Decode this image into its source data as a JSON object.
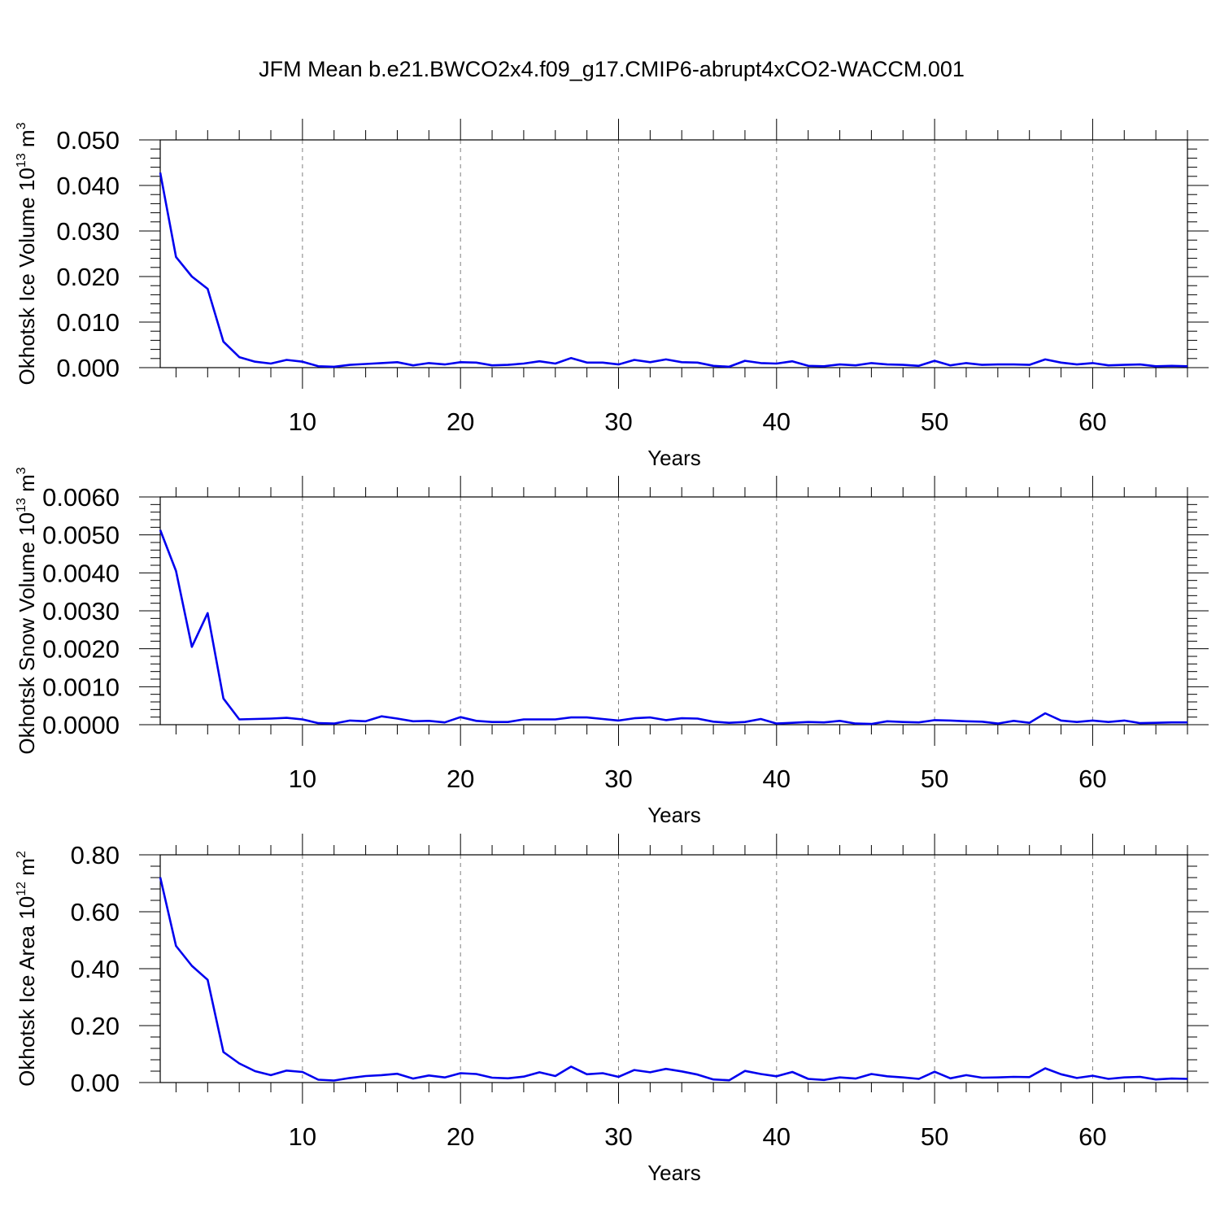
{
  "title": "JFM Mean b.e21.BWCO2x4.f09_g17.CMIP6-abrupt4xCO2-WACCM.001",
  "colors": {
    "line": "#0000ee",
    "axis": "#000000",
    "grid": "#808080"
  },
  "chart_data": [
    {
      "type": "line",
      "ylabel": {
        "text": "Okhotsk Ice Volume 10",
        "exp": "13",
        "unit": " m",
        "unit_exp": "3"
      },
      "xlabel": "Years",
      "xlim": [
        1,
        66
      ],
      "ylim": [
        0,
        0.05
      ],
      "xticks": [
        10,
        20,
        30,
        40,
        50,
        60
      ],
      "yticks": [
        "0.000",
        "0.010",
        "0.020",
        "0.030",
        "0.040",
        "0.050"
      ],
      "grid": "vertical-dashed",
      "series": [
        {
          "x": [
            1,
            2,
            3,
            4,
            5,
            6,
            7,
            8,
            9,
            10,
            11,
            12,
            13,
            14,
            15,
            16,
            17,
            18,
            19,
            20,
            21,
            22,
            23,
            24,
            25,
            26,
            27,
            28,
            29,
            30,
            31,
            32,
            33,
            34,
            35,
            36,
            37,
            38,
            39,
            40,
            41,
            42,
            43,
            44,
            45,
            46,
            47,
            48,
            49,
            50,
            51,
            52,
            53,
            54,
            55,
            56,
            57,
            58,
            59,
            60,
            61,
            62,
            63,
            64,
            65,
            66
          ],
          "y": [
            0.0428,
            0.0243,
            0.02,
            0.0173,
            0.0057,
            0.0023,
            0.0013,
            0.0009,
            0.0017,
            0.0013,
            0.0003,
            0.0002,
            0.0006,
            0.0008,
            0.001,
            0.0012,
            0.0005,
            0.001,
            0.0007,
            0.0012,
            0.0011,
            0.0005,
            0.0006,
            0.0009,
            0.0014,
            0.0009,
            0.0021,
            0.0011,
            0.0011,
            0.0007,
            0.0017,
            0.0012,
            0.0018,
            0.0012,
            0.0011,
            0.0004,
            0.0002,
            0.0015,
            0.001,
            0.0009,
            0.0014,
            0.0004,
            0.0003,
            0.0007,
            0.0005,
            0.001,
            0.0007,
            0.0006,
            0.0004,
            0.0015,
            0.0005,
            0.001,
            0.0006,
            0.0007,
            0.0007,
            0.0006,
            0.0018,
            0.0011,
            0.0007,
            0.001,
            0.0005,
            0.0006,
            0.0007,
            0.0003,
            0.0004,
            0.0003
          ]
        }
      ]
    },
    {
      "type": "line",
      "ylabel": {
        "text": "Okhotsk Snow Volume 10",
        "exp": "13",
        "unit": " m",
        "unit_exp": "3"
      },
      "xlabel": "Years",
      "xlim": [
        1,
        66
      ],
      "ylim": [
        0,
        0.006
      ],
      "xticks": [
        10,
        20,
        30,
        40,
        50,
        60
      ],
      "yticks": [
        "0.0000",
        "0.0010",
        "0.0020",
        "0.0030",
        "0.0040",
        "0.0050",
        "0.0060"
      ],
      "grid": "vertical-dashed",
      "series": [
        {
          "x": [
            1,
            2,
            3,
            4,
            5,
            6,
            7,
            8,
            9,
            10,
            11,
            12,
            13,
            14,
            15,
            16,
            17,
            18,
            19,
            20,
            21,
            22,
            23,
            24,
            25,
            26,
            27,
            28,
            29,
            30,
            31,
            32,
            33,
            34,
            35,
            36,
            37,
            38,
            39,
            40,
            41,
            42,
            43,
            44,
            45,
            46,
            47,
            48,
            49,
            50,
            51,
            52,
            53,
            54,
            55,
            56,
            57,
            58,
            59,
            60,
            61,
            62,
            63,
            64,
            65,
            66
          ],
          "y": [
            0.00513,
            0.00405,
            0.00205,
            0.00294,
            0.00069,
            0.00014,
            0.00015,
            0.00016,
            0.00018,
            0.00014,
            4e-05,
            3e-05,
            0.00011,
            9e-05,
            0.00022,
            0.00016,
            9e-05,
            0.0001,
            6e-05,
            0.0002,
            0.0001,
            7e-05,
            7e-05,
            0.00014,
            0.00014,
            0.00014,
            0.00019,
            0.00019,
            0.00015,
            0.00011,
            0.00017,
            0.00019,
            0.00012,
            0.00017,
            0.00016,
            8e-05,
            5e-05,
            7e-05,
            0.00015,
            3e-05,
            5e-05,
            7e-05,
            6e-05,
            0.0001,
            3e-05,
            2e-05,
            9e-05,
            7e-05,
            6e-05,
            0.00012,
            0.00011,
            9e-05,
            8e-05,
            3e-05,
            0.0001,
            5e-05,
            0.0003,
            0.00011,
            7e-05,
            0.00011,
            7e-05,
            0.00011,
            4e-05,
            5e-05,
            6e-05,
            6e-05
          ]
        }
      ]
    },
    {
      "type": "line",
      "ylabel": {
        "text": "Okhotsk Ice Area 10",
        "exp": "12",
        "unit": " m",
        "unit_exp": "2"
      },
      "xlabel": "Years",
      "xlim": [
        1,
        66
      ],
      "ylim": [
        0,
        0.8
      ],
      "xticks": [
        10,
        20,
        30,
        40,
        50,
        60
      ],
      "yticks": [
        "0.00",
        "0.20",
        "0.40",
        "0.60",
        "0.80"
      ],
      "grid": "vertical-dashed",
      "series": [
        {
          "x": [
            1,
            2,
            3,
            4,
            5,
            6,
            7,
            8,
            9,
            10,
            11,
            12,
            13,
            14,
            15,
            16,
            17,
            18,
            19,
            20,
            21,
            22,
            23,
            24,
            25,
            26,
            27,
            28,
            29,
            30,
            31,
            32,
            33,
            34,
            35,
            36,
            37,
            38,
            39,
            40,
            41,
            42,
            43,
            44,
            45,
            46,
            47,
            48,
            49,
            50,
            51,
            52,
            53,
            54,
            55,
            56,
            57,
            58,
            59,
            60,
            61,
            62,
            63,
            64,
            65,
            66
          ],
          "y": [
            0.721,
            0.48,
            0.41,
            0.361,
            0.107,
            0.067,
            0.04,
            0.026,
            0.042,
            0.037,
            0.01,
            0.007,
            0.016,
            0.023,
            0.026,
            0.031,
            0.014,
            0.025,
            0.018,
            0.033,
            0.03,
            0.017,
            0.015,
            0.021,
            0.036,
            0.023,
            0.056,
            0.029,
            0.033,
            0.02,
            0.044,
            0.036,
            0.048,
            0.039,
            0.028,
            0.011,
            0.008,
            0.041,
            0.03,
            0.022,
            0.037,
            0.013,
            0.009,
            0.018,
            0.014,
            0.03,
            0.022,
            0.018,
            0.013,
            0.038,
            0.015,
            0.026,
            0.017,
            0.018,
            0.02,
            0.019,
            0.05,
            0.029,
            0.016,
            0.024,
            0.013,
            0.018,
            0.02,
            0.011,
            0.014,
            0.013
          ]
        }
      ]
    }
  ]
}
